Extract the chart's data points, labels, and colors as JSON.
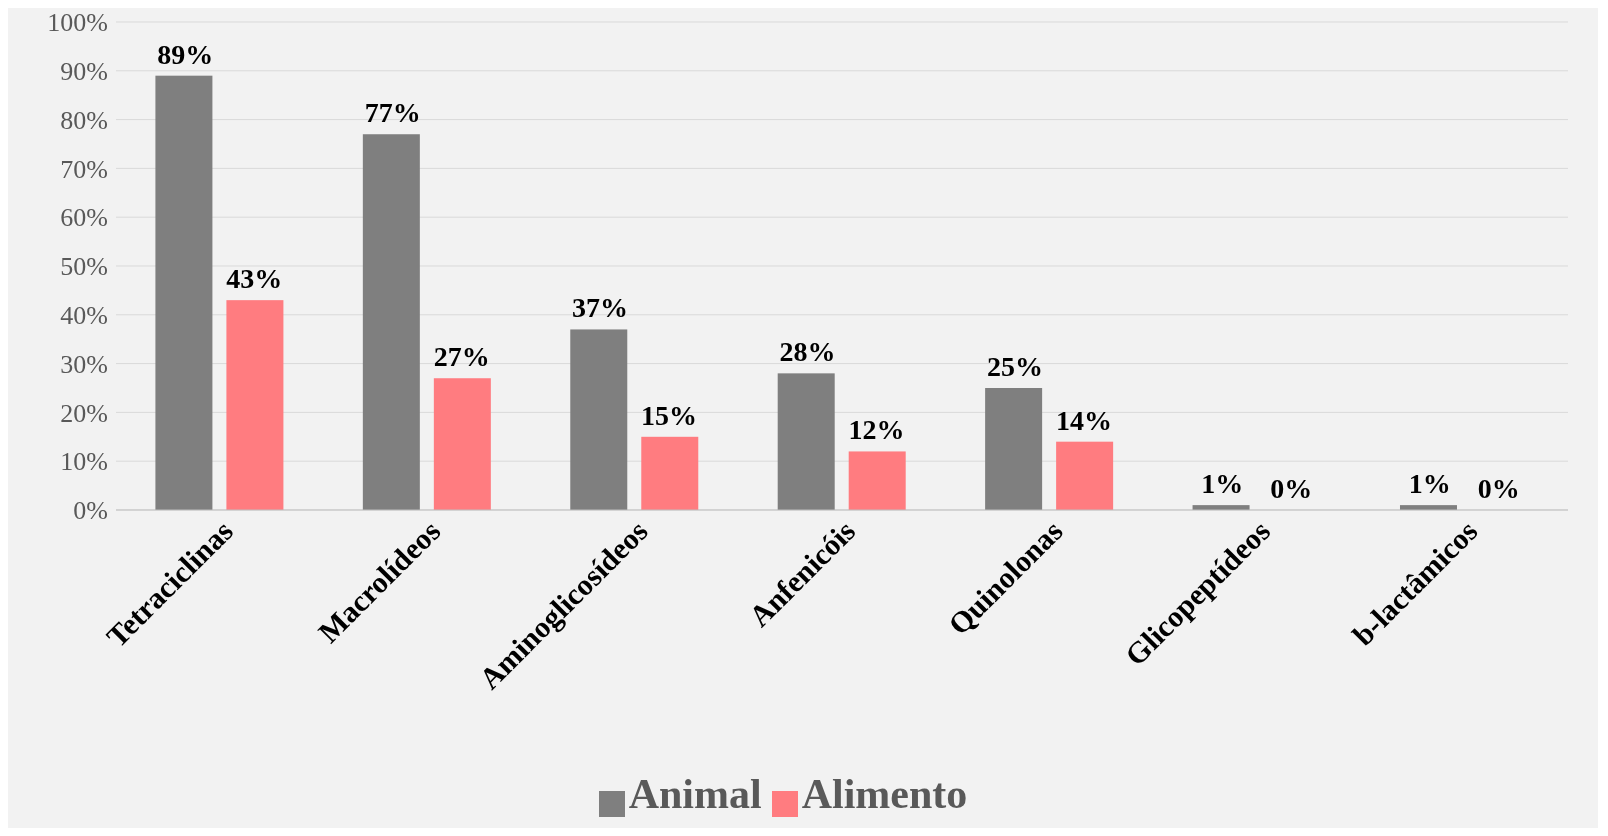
{
  "chart_data": {
    "type": "bar",
    "categories": [
      "Tetraciclinas",
      "Macrolídeos",
      "Aminoglicosídeos",
      "Anfenicóis",
      "Quinolonas",
      "Glicopeptídeos",
      "b-lactâmicos"
    ],
    "series": [
      {
        "name": "Animal",
        "color": "#7f7f7f",
        "values": [
          89,
          77,
          37,
          28,
          25,
          1,
          1
        ],
        "value_labels": [
          "89%",
          "77%",
          "37%",
          "28%",
          "25%",
          "1%",
          "1%"
        ]
      },
      {
        "name": "Alimento",
        "color": "#ff7c80",
        "values": [
          43,
          27,
          15,
          12,
          14,
          0,
          0
        ],
        "value_labels": [
          "43%",
          "27%",
          "15%",
          "12%",
          "14%",
          "0%",
          "0%"
        ]
      }
    ],
    "ylim": [
      0,
      100
    ],
    "yticks": [
      {
        "value": 0,
        "label": "0%"
      },
      {
        "value": 10,
        "label": "10%"
      },
      {
        "value": 20,
        "label": "20%"
      },
      {
        "value": 30,
        "label": "30%"
      },
      {
        "value": 40,
        "label": "40%"
      },
      {
        "value": 50,
        "label": "50%"
      },
      {
        "value": 60,
        "label": "60%"
      },
      {
        "value": 70,
        "label": "70%"
      },
      {
        "value": 80,
        "label": "80%"
      },
      {
        "value": 90,
        "label": "90%"
      },
      {
        "value": 100,
        "label": "100%"
      }
    ],
    "grid": "y",
    "legend": "bottom"
  }
}
